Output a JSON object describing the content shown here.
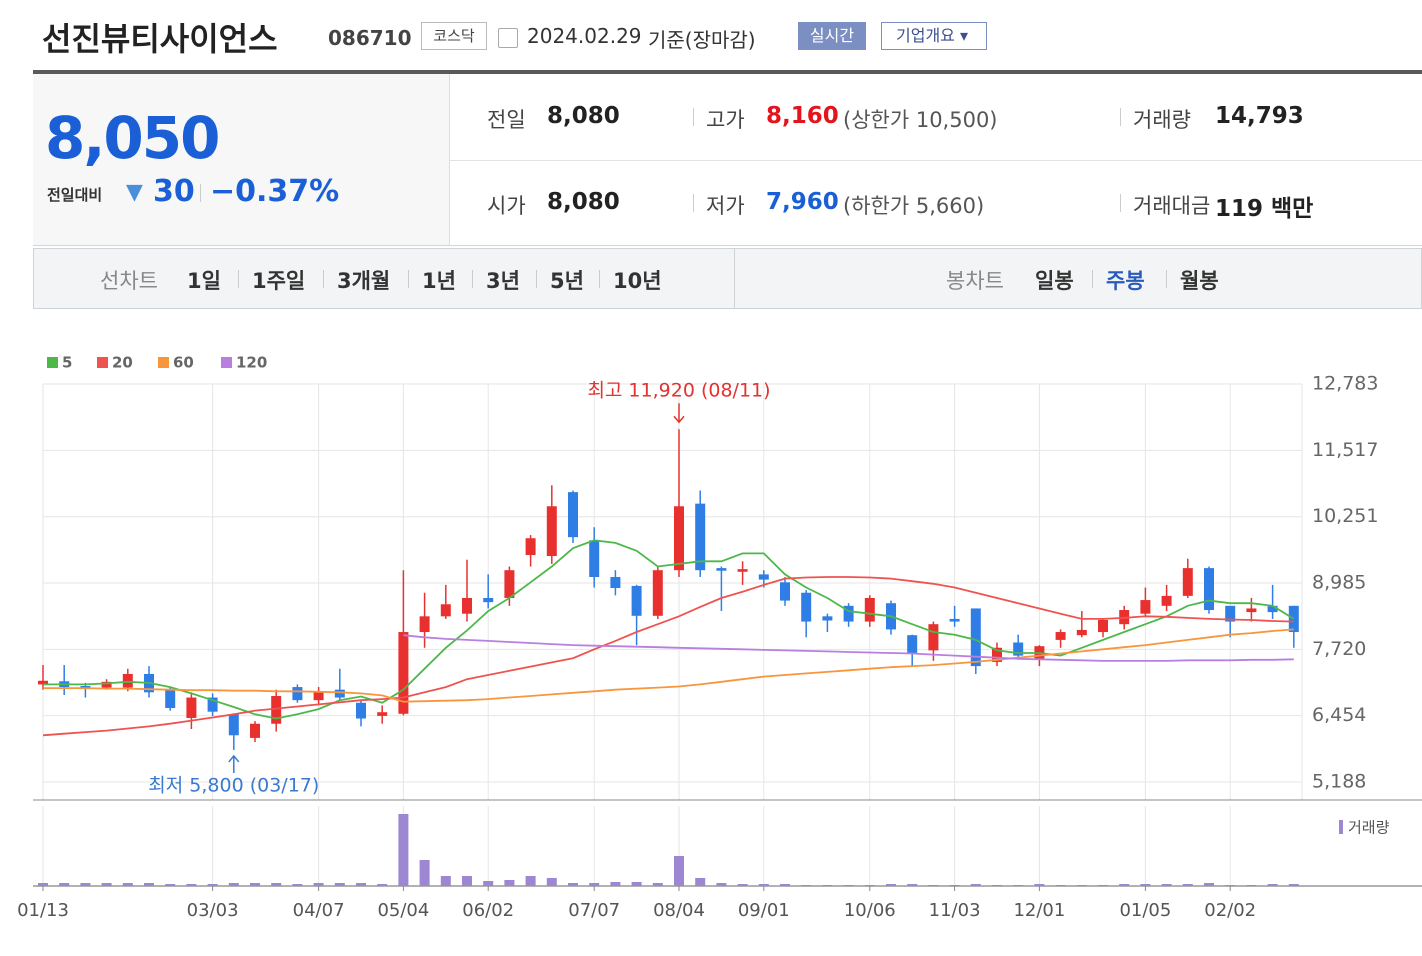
{
  "header": {
    "title": "선진뷰티사이언스",
    "code": "086710",
    "market": "코스닥",
    "date": "2024.02.29",
    "basis": "기준(장마감)",
    "realtime": "실시간",
    "overview": "기업개요"
  },
  "quote": {
    "price": "8,050",
    "change_label": "전일대비",
    "change": "30",
    "change_pct": "−0.37%",
    "rows": [
      [
        {
          "label": "전일",
          "value": "8,080"
        },
        {
          "label": "고가",
          "value": "8,160",
          "note": "(상한가 10,500)"
        },
        {
          "label": "거래량",
          "value": "14,793"
        }
      ],
      [
        {
          "label": "시가",
          "value": "8,080"
        },
        {
          "label": "저가",
          "value": "7,960",
          "note": "(하한가 5,660)"
        },
        {
          "label": "거래대금",
          "value": "119 백만"
        }
      ]
    ]
  },
  "tabs": {
    "line_label": "선차트",
    "line": [
      "1일",
      "1주일",
      "3개월",
      "1년",
      "3년",
      "5년",
      "10년"
    ],
    "candle_label": "봉차트",
    "candle": [
      "일봉",
      "주봉",
      "월봉"
    ],
    "active_candle": 1
  },
  "chart_data": {
    "type": "candlestick",
    "categories": [
      "01/13",
      null,
      null,
      null,
      null,
      null,
      null,
      null,
      "03/03",
      null,
      null,
      null,
      null,
      "04/07",
      null,
      null,
      null,
      "05/04",
      null,
      null,
      null,
      "06/02",
      null,
      null,
      null,
      null,
      "07/07",
      null,
      null,
      null,
      "08/04",
      null,
      null,
      null,
      "09/01",
      null,
      null,
      null,
      null,
      "10/06",
      null,
      null,
      null,
      "11/03",
      null,
      null,
      null,
      "12/01",
      null,
      null,
      null,
      null,
      "01/05",
      null,
      null,
      null,
      "02/02",
      null,
      null,
      null
    ],
    "open": [
      7050,
      7110,
      7020,
      6990,
      6990,
      7250,
      6950,
      6410,
      6800,
      6480,
      6030,
      6300,
      7000,
      6750,
      6950,
      6700,
      6450,
      6490,
      8050,
      8350,
      8400,
      8700,
      8700,
      9520,
      9500,
      10720,
      9800,
      9100,
      8930,
      8360,
      9230,
      10500,
      9270,
      9200,
      9150,
      9000,
      8800,
      8350,
      8550,
      8250,
      8600,
      7990,
      7700,
      8300,
      8500,
      7480,
      7850,
      7520,
      7900,
      7990,
      8050,
      8200,
      8400,
      8550,
      8740,
      9270,
      8550,
      8430,
      8550,
      8550
    ],
    "high": [
      7420,
      7420,
      7080,
      7150,
      7350,
      7400,
      7000,
      6900,
      6880,
      6500,
      6350,
      6950,
      7050,
      7000,
      7350,
      6750,
      6650,
      9230,
      8800,
      8950,
      9430,
      9150,
      9300,
      9900,
      10850,
      10750,
      10050,
      9230,
      8950,
      9300,
      11920,
      10750,
      9300,
      9400,
      9230,
      9100,
      8850,
      8400,
      8600,
      8750,
      8650,
      8000,
      8250,
      8550,
      8500,
      7850,
      8000,
      7800,
      8100,
      8450,
      8300,
      8550,
      8900,
      8950,
      9450,
      9300,
      8550,
      8700,
      8950,
      8550
    ],
    "low": [
      6950,
      6850,
      6800,
      6950,
      6920,
      6800,
      6550,
      6200,
      6450,
      5800,
      5950,
      6150,
      6700,
      6650,
      6750,
      6250,
      6300,
      6460,
      7750,
      8300,
      8250,
      8500,
      8550,
      9300,
      9350,
      9750,
      8900,
      8750,
      7800,
      8300,
      9100,
      9100,
      8450,
      8950,
      8900,
      8550,
      7950,
      8050,
      8150,
      8150,
      8000,
      7400,
      7500,
      8150,
      7250,
      7400,
      7550,
      7400,
      7750,
      7950,
      7950,
      8100,
      8350,
      8450,
      8700,
      8400,
      7950,
      8250,
      8300,
      7750
    ],
    "close": [
      7120,
      7000,
      6980,
      7100,
      7250,
      6900,
      6600,
      6800,
      6530,
      6080,
      6300,
      6830,
      6750,
      6900,
      6800,
      6400,
      6520,
      8050,
      8350,
      8580,
      8700,
      8620,
      9230,
      9840,
      10450,
      9860,
      9100,
      8890,
      8360,
      9230,
      10450,
      9230,
      9220,
      9250,
      9050,
      8650,
      8250,
      8270,
      8250,
      8700,
      8100,
      7640,
      8200,
      8250,
      7400,
      7750,
      7600,
      7780,
      8050,
      8090,
      8280,
      8470,
      8660,
      8740,
      9270,
      8470,
      8250,
      8500,
      8430,
      8050
    ],
    "up_color": "#e8312f",
    "down_color": "#2f7ee6",
    "series": [
      {
        "name": "5",
        "color": "#4cb84a",
        "values": [
          7050,
          7050,
          7050,
          7070,
          7100,
          7080,
          7000,
          6880,
          6750,
          6620,
          6480,
          6400,
          6480,
          6580,
          6750,
          6820,
          6700,
          6950,
          7350,
          7750,
          8080,
          8450,
          8700,
          9000,
          9300,
          9650,
          9800,
          9750,
          9600,
          9300,
          9350,
          9400,
          9400,
          9550,
          9550,
          9150,
          8900,
          8700,
          8450,
          8400,
          8350,
          8200,
          8050,
          8000,
          7900,
          7700,
          7650,
          7650,
          7600,
          7750,
          7900,
          8050,
          8200,
          8350,
          8550,
          8650,
          8600,
          8600,
          8550,
          8300
        ]
      },
      {
        "name": "20",
        "color": "#ef5350",
        "values": [
          6080,
          6110,
          6140,
          6170,
          6210,
          6250,
          6300,
          6360,
          6420,
          6480,
          6550,
          6590,
          6630,
          6670,
          6710,
          6750,
          6770,
          6800,
          6900,
          7000,
          7150,
          7230,
          7310,
          7390,
          7470,
          7550,
          7720,
          7880,
          8050,
          8200,
          8350,
          8530,
          8700,
          8820,
          8950,
          9070,
          9090,
          9100,
          9100,
          9090,
          9070,
          9020,
          8970,
          8900,
          8800,
          8700,
          8600,
          8500,
          8400,
          8300,
          8300,
          8320,
          8350,
          8340,
          8320,
          8300,
          8290,
          8280,
          8260,
          8250
        ]
      },
      {
        "name": "60",
        "color": "#f7963b",
        "values": [
          6980,
          6980,
          6980,
          6970,
          6970,
          6960,
          6950,
          6940,
          6940,
          6930,
          6930,
          6920,
          6920,
          6910,
          6900,
          6880,
          6840,
          6720,
          6730,
          6740,
          6750,
          6770,
          6800,
          6830,
          6860,
          6890,
          6920,
          6950,
          6970,
          6990,
          7010,
          7050,
          7100,
          7150,
          7200,
          7230,
          7260,
          7290,
          7320,
          7350,
          7380,
          7400,
          7420,
          7450,
          7480,
          7520,
          7560,
          7600,
          7640,
          7680,
          7720,
          7760,
          7800,
          7850,
          7900,
          7950,
          8000,
          8030,
          8070,
          8100
        ]
      },
      {
        "name": "120",
        "color": "#b97fe0",
        "values": [
          null,
          null,
          null,
          null,
          null,
          null,
          null,
          null,
          null,
          null,
          null,
          null,
          null,
          null,
          null,
          null,
          null,
          7990,
          7950,
          7920,
          7900,
          7880,
          7860,
          7840,
          7820,
          7800,
          7790,
          7780,
          7770,
          7760,
          7750,
          7740,
          7730,
          7720,
          7710,
          7700,
          7690,
          7680,
          7670,
          7660,
          7650,
          7640,
          7620,
          7600,
          7580,
          7560,
          7540,
          7530,
          7520,
          7510,
          7500,
          7500,
          7500,
          7500,
          7510,
          7510,
          7510,
          7520,
          7520,
          7530
        ]
      }
    ],
    "volume": {
      "name": "거래량",
      "color": "#9d86d2",
      "values": [
        30000,
        30000,
        30000,
        30000,
        30000,
        30000,
        20000,
        20000,
        20000,
        30000,
        30000,
        30000,
        20000,
        30000,
        30000,
        30000,
        20000,
        720000,
        260000,
        100000,
        100000,
        50000,
        60000,
        100000,
        80000,
        30000,
        30000,
        40000,
        40000,
        30000,
        300000,
        80000,
        30000,
        20000,
        20000,
        20000,
        10000,
        10000,
        10000,
        10000,
        20000,
        20000,
        10000,
        10000,
        20000,
        10000,
        10000,
        20000,
        10000,
        10000,
        10000,
        20000,
        20000,
        20000,
        20000,
        30000,
        10000,
        10000,
        20000,
        20000
      ]
    },
    "ylim": [
      4845,
      12783
    ],
    "yticks": [
      {
        "value": 5188,
        "label": "5,188"
      },
      {
        "value": 6454,
        "label": "6,454"
      },
      {
        "value": 7720,
        "label": "7,720"
      },
      {
        "value": 8985,
        "label": "8,985"
      },
      {
        "value": 10251,
        "label": "10,251"
      },
      {
        "value": 11517,
        "label": "11,517"
      },
      {
        "value": 12783,
        "label": "12,783"
      }
    ],
    "grid": true,
    "annotations": [
      {
        "text": "최고 11,920 (08/11)",
        "index": 30,
        "value": 11920,
        "color": "#e3322f",
        "dir": "down"
      },
      {
        "text": "최저 5,800 (03/17)",
        "index": 9,
        "value": 5800,
        "color": "#3a7ad0",
        "dir": "up"
      }
    ]
  }
}
